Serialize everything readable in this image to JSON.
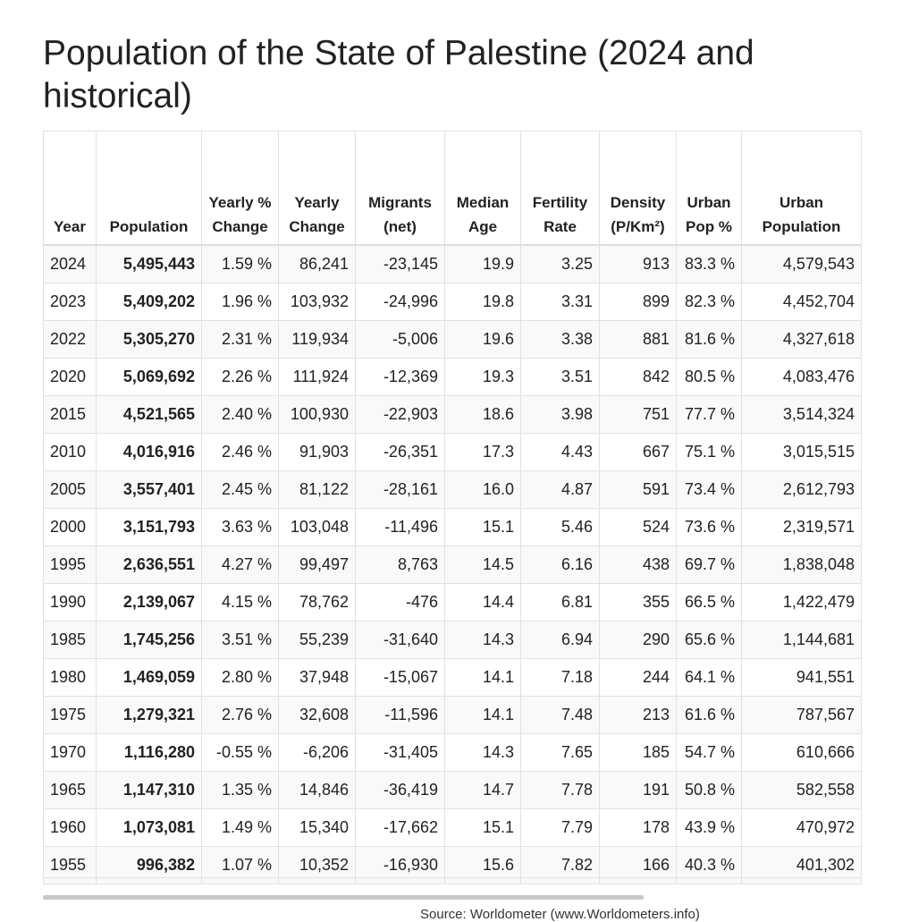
{
  "title": "Population of the State of Palestine (2024 and historical)",
  "table": {
    "header": [
      "Year",
      "Population",
      "Yearly % Change",
      "Yearly Change",
      "Migrants (net)",
      "Median Age",
      "Fertility Rate",
      "Density (P/Km²)",
      "Urban Pop %",
      "Urban Population"
    ],
    "rows": [
      [
        "2024",
        "5,495,443",
        "1.59 %",
        "86,241",
        "-23,145",
        "19.9",
        "3.25",
        "913",
        "83.3 %",
        "4,579,543"
      ],
      [
        "2023",
        "5,409,202",
        "1.96 %",
        "103,932",
        "-24,996",
        "19.8",
        "3.31",
        "899",
        "82.3 %",
        "4,452,704"
      ],
      [
        "2022",
        "5,305,270",
        "2.31 %",
        "119,934",
        "-5,006",
        "19.6",
        "3.38",
        "881",
        "81.6 %",
        "4,327,618"
      ],
      [
        "2020",
        "5,069,692",
        "2.26 %",
        "111,924",
        "-12,369",
        "19.3",
        "3.51",
        "842",
        "80.5 %",
        "4,083,476"
      ],
      [
        "2015",
        "4,521,565",
        "2.40 %",
        "100,930",
        "-22,903",
        "18.6",
        "3.98",
        "751",
        "77.7 %",
        "3,514,324"
      ],
      [
        "2010",
        "4,016,916",
        "2.46 %",
        "91,903",
        "-26,351",
        "17.3",
        "4.43",
        "667",
        "75.1 %",
        "3,015,515"
      ],
      [
        "2005",
        "3,557,401",
        "2.45 %",
        "81,122",
        "-28,161",
        "16.0",
        "4.87",
        "591",
        "73.4 %",
        "2,612,793"
      ],
      [
        "2000",
        "3,151,793",
        "3.63 %",
        "103,048",
        "-11,496",
        "15.1",
        "5.46",
        "524",
        "73.6 %",
        "2,319,571"
      ],
      [
        "1995",
        "2,636,551",
        "4.27 %",
        "99,497",
        "8,763",
        "14.5",
        "6.16",
        "438",
        "69.7 %",
        "1,838,048"
      ],
      [
        "1990",
        "2,139,067",
        "4.15 %",
        "78,762",
        "-476",
        "14.4",
        "6.81",
        "355",
        "66.5 %",
        "1,422,479"
      ],
      [
        "1985",
        "1,745,256",
        "3.51 %",
        "55,239",
        "-31,640",
        "14.3",
        "6.94",
        "290",
        "65.6 %",
        "1,144,681"
      ],
      [
        "1980",
        "1,469,059",
        "2.80 %",
        "37,948",
        "-15,067",
        "14.1",
        "7.18",
        "244",
        "64.1 %",
        "941,551"
      ],
      [
        "1975",
        "1,279,321",
        "2.76 %",
        "32,608",
        "-11,596",
        "14.1",
        "7.48",
        "213",
        "61.6 %",
        "787,567"
      ],
      [
        "1970",
        "1,116,280",
        "-0.55 %",
        "-6,206",
        "-31,405",
        "14.3",
        "7.65",
        "185",
        "54.7 %",
        "610,666"
      ],
      [
        "1965",
        "1,147,310",
        "1.35 %",
        "14,846",
        "-36,419",
        "14.7",
        "7.78",
        "191",
        "50.8 %",
        "582,558"
      ],
      [
        "1960",
        "1,073,081",
        "1.49 %",
        "15,340",
        "-17,662",
        "15.1",
        "7.79",
        "178",
        "43.9 %",
        "470,972"
      ],
      [
        "1955",
        "996,382",
        "1.07 %",
        "10,352",
        "-16,930",
        "15.6",
        "7.82",
        "166",
        "40.3 %",
        "401,302"
      ]
    ]
  },
  "source": "Source: Worldometer (www.Worldometers.info)"
}
